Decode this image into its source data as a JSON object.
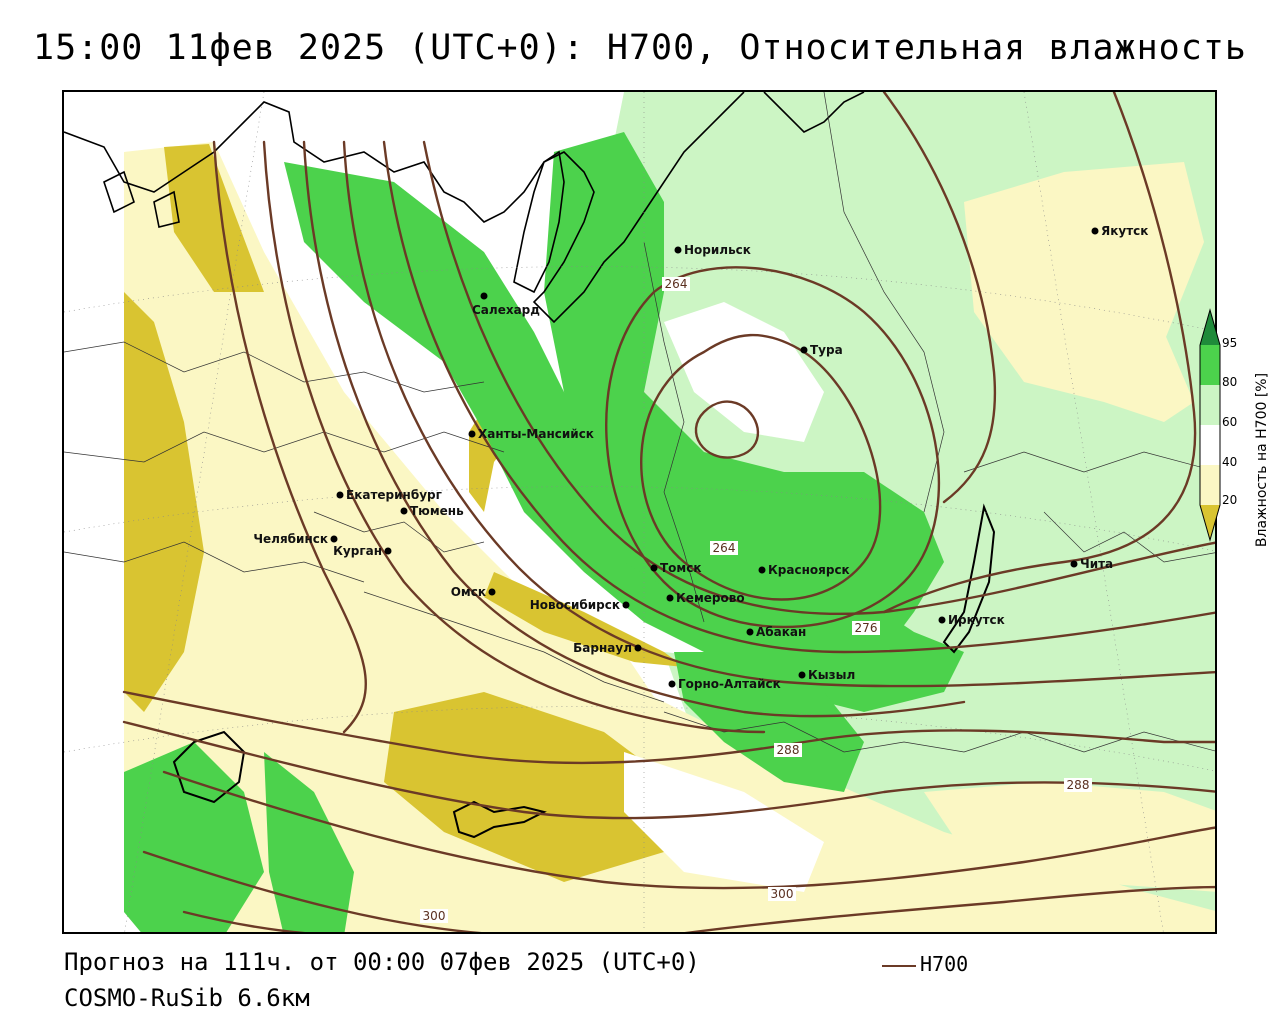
{
  "title": "15:00 11фев 2025 (UTC+0): H700, Относительная влажность",
  "footer": {
    "forecast": "Прогноз на 111ч. от 00:00 07фев 2025 (UTC+0)",
    "model": "COSMO-RuSib 6.6км",
    "contour_legend": "H700"
  },
  "scale": {
    "title": "Влажность на H700 [%]",
    "ticks": [
      "95",
      "80",
      "60",
      "40",
      "20"
    ],
    "colors": {
      "very_dry": "#d9c431",
      "dry": "#ece08f",
      "semi_dry": "#fbf7c4",
      "neutral": "#ffffff",
      "moist": "#ccf5c4",
      "wet": "#4cd24c",
      "very_wet": "#1f8b3a"
    }
  },
  "contour_color": "#6b3a26",
  "cities": [
    {
      "name": "Норильск"
    },
    {
      "name": "Якутск"
    },
    {
      "name": "Салехард"
    },
    {
      "name": "Тура"
    },
    {
      "name": "Ханты-Мансийск"
    },
    {
      "name": "Екатеринбург"
    },
    {
      "name": "Тюмень"
    },
    {
      "name": "Челябинск"
    },
    {
      "name": "Курган"
    },
    {
      "name": "Томск"
    },
    {
      "name": "Красноярск"
    },
    {
      "name": "Омск"
    },
    {
      "name": "Новосибирск"
    },
    {
      "name": "Кемерово"
    },
    {
      "name": "Абакан"
    },
    {
      "name": "Барнаул"
    },
    {
      "name": "Иркутск"
    },
    {
      "name": "Чита"
    },
    {
      "name": "Горно-Алтайск"
    },
    {
      "name": "Кызыл"
    }
  ],
  "isohypse_labels": [
    "264",
    "264",
    "276",
    "288",
    "288",
    "300",
    "300"
  ]
}
